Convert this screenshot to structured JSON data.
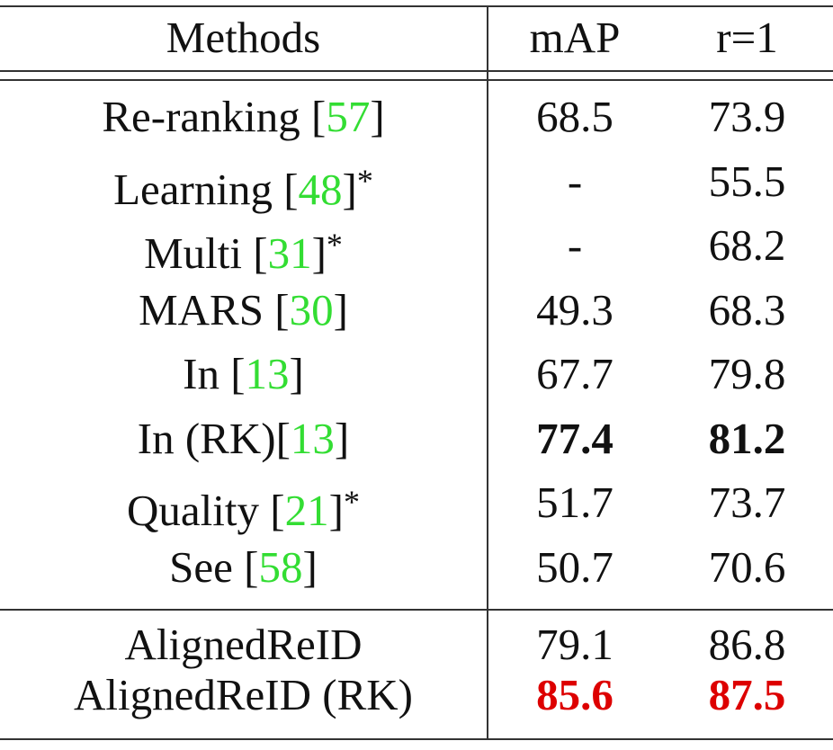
{
  "table": {
    "headers": {
      "method": "Methods",
      "map": "mAP",
      "r1": "r=1"
    },
    "rows": [
      {
        "name": "Re-ranking ",
        "lb": "[",
        "cite": "57",
        "rb": "]",
        "star": "",
        "map": "68.5",
        "r1": "73.9",
        "style": ""
      },
      {
        "name": "Learning ",
        "lb": "[",
        "cite": "48",
        "rb": "]",
        "star": "*",
        "map": "-",
        "r1": "55.5",
        "style": ""
      },
      {
        "name": "Multi ",
        "lb": "[",
        "cite": "31",
        "rb": "]",
        "star": "*",
        "map": "-",
        "r1": "68.2",
        "style": ""
      },
      {
        "name": "MARS ",
        "lb": "[",
        "cite": "30",
        "rb": "]",
        "star": "",
        "map": "49.3",
        "r1": "68.3",
        "style": ""
      },
      {
        "name": "In ",
        "lb": "[",
        "cite": "13",
        "rb": "]",
        "star": "",
        "map": "67.7",
        "r1": "79.8",
        "style": ""
      },
      {
        "name": "In (RK)",
        "lb": "[",
        "cite": "13",
        "rb": "]",
        "star": "",
        "map": "77.4",
        "r1": "81.2",
        "style": "bold"
      },
      {
        "name": "Quality ",
        "lb": "[",
        "cite": "21",
        "rb": "]",
        "star": "*",
        "map": "51.7",
        "r1": "73.7",
        "style": ""
      },
      {
        "name": "See ",
        "lb": "[",
        "cite": "58",
        "rb": "]",
        "star": "",
        "map": "50.7",
        "r1": "70.6",
        "style": ""
      },
      {
        "name": "AlignedReID",
        "lb": "",
        "cite": "",
        "rb": "",
        "star": "",
        "map": "79.1",
        "r1": "86.8",
        "style": ""
      },
      {
        "name": "AlignedReID (RK)",
        "lb": "",
        "cite": "",
        "rb": "",
        "star": "",
        "map": "85.6",
        "r1": "87.5",
        "style": "red"
      }
    ]
  },
  "colors": {
    "citation": "#33dd33",
    "best": "#dd0000",
    "rule": "#333333"
  }
}
